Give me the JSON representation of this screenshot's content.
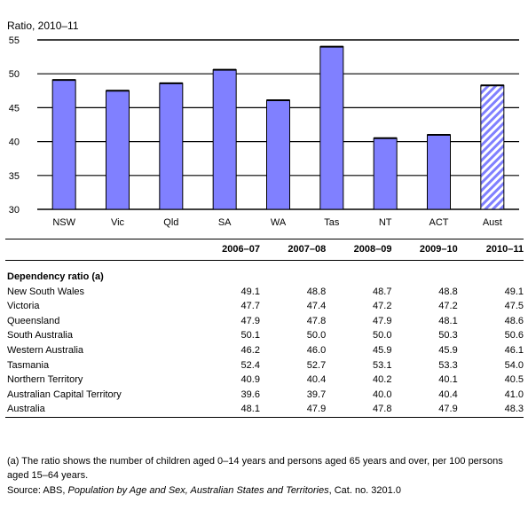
{
  "chart_data": {
    "type": "bar",
    "title": "Ratio, 2010–11",
    "categories": [
      "NSW",
      "Vic",
      "Qld",
      "SA",
      "WA",
      "Tas",
      "NT",
      "ACT",
      "Aust"
    ],
    "values": [
      49.1,
      47.5,
      48.6,
      50.6,
      46.1,
      54.0,
      40.5,
      41.0,
      48.3
    ],
    "ylim": [
      30,
      55
    ],
    "yticks": [
      30,
      35,
      40,
      45,
      50,
      55
    ],
    "grid": true,
    "bar_color": "#8080ff",
    "highlight_color": "#8080ff",
    "highlight_category": "Aust",
    "highlight_pattern": "diagonal-hatch"
  },
  "table": {
    "columns": [
      "2006–07",
      "2007–08",
      "2008–09",
      "2009–10",
      "2010–11"
    ],
    "section_title": "Dependency ratio (a)",
    "rows": [
      {
        "label": "New South Wales",
        "values": [
          "49.1",
          "48.8",
          "48.7",
          "48.8",
          "49.1"
        ]
      },
      {
        "label": "Victoria",
        "values": [
          "47.7",
          "47.4",
          "47.2",
          "47.2",
          "47.5"
        ]
      },
      {
        "label": "Queensland",
        "values": [
          "47.9",
          "47.8",
          "47.9",
          "48.1",
          "48.6"
        ]
      },
      {
        "label": "South Australia",
        "values": [
          "50.1",
          "50.0",
          "50.0",
          "50.3",
          "50.6"
        ]
      },
      {
        "label": "Western Australia",
        "values": [
          "46.2",
          "46.0",
          "45.9",
          "45.9",
          "46.1"
        ]
      },
      {
        "label": "Tasmania",
        "values": [
          "52.4",
          "52.7",
          "53.1",
          "53.3",
          "54.0"
        ]
      },
      {
        "label": "Northern Territory",
        "values": [
          "40.9",
          "40.4",
          "40.2",
          "40.1",
          "40.5"
        ]
      },
      {
        "label": "Australian Capital Territory",
        "values": [
          "39.6",
          "39.7",
          "40.0",
          "40.4",
          "41.0"
        ]
      },
      {
        "label": "Australia",
        "values": [
          "48.1",
          "47.9",
          "47.8",
          "47.9",
          "48.3"
        ]
      }
    ]
  },
  "footnote": "(a) The ratio shows the number of children aged 0–14 years and persons aged 65 years and over, per 100 persons aged 15–64 years.",
  "source": {
    "prefix": "Source: ABS, ",
    "title": "Population by Age and Sex, Australian States and Territories",
    "suffix": ", Cat. no. 3201.0"
  }
}
